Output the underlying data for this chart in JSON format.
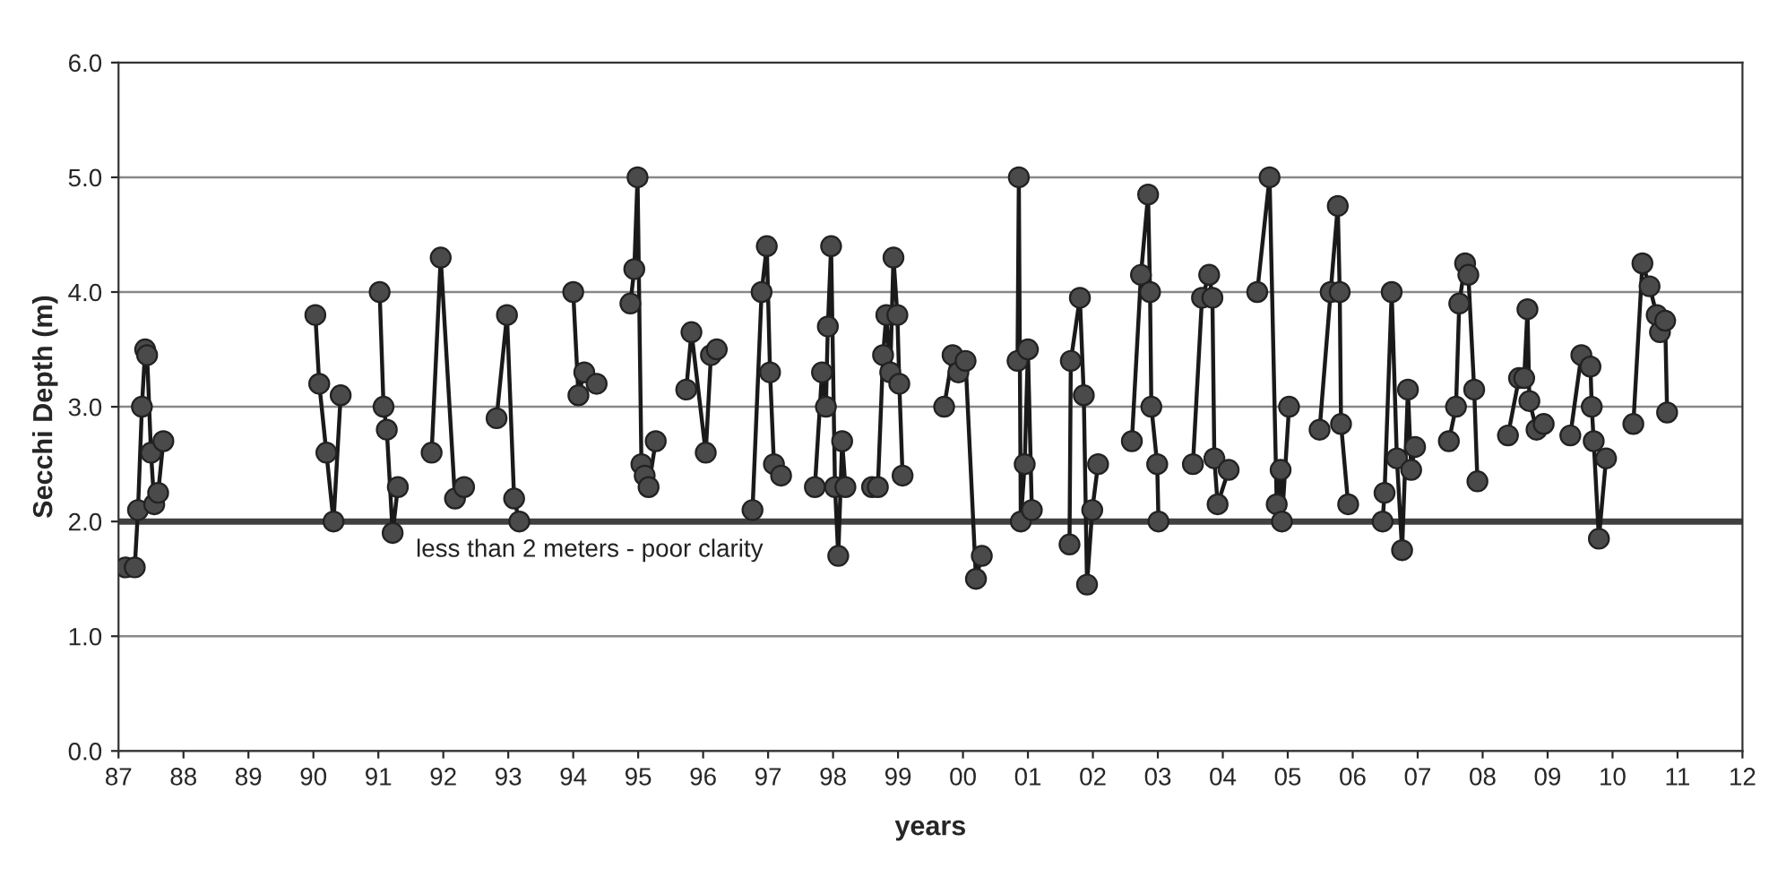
{
  "chart_data": {
    "type": "line",
    "xlabel": "years",
    "ylabel": "Secchi Depth (m)",
    "xlim": [
      1987,
      2012
    ],
    "ylim": [
      0,
      6
    ],
    "xticks": [
      {
        "value": 1987,
        "label": "87"
      },
      {
        "value": 1988,
        "label": "88"
      },
      {
        "value": 1989,
        "label": "89"
      },
      {
        "value": 1990,
        "label": "90"
      },
      {
        "value": 1991,
        "label": "91"
      },
      {
        "value": 1992,
        "label": "92"
      },
      {
        "value": 1993,
        "label": "93"
      },
      {
        "value": 1994,
        "label": "94"
      },
      {
        "value": 1995,
        "label": "95"
      },
      {
        "value": 1996,
        "label": "96"
      },
      {
        "value": 1997,
        "label": "97"
      },
      {
        "value": 1998,
        "label": "98"
      },
      {
        "value": 1999,
        "label": "99"
      },
      {
        "value": 2000,
        "label": "00"
      },
      {
        "value": 2001,
        "label": "01"
      },
      {
        "value": 2002,
        "label": "02"
      },
      {
        "value": 2003,
        "label": "03"
      },
      {
        "value": 2004,
        "label": "04"
      },
      {
        "value": 2005,
        "label": "05"
      },
      {
        "value": 2006,
        "label": "06"
      },
      {
        "value": 2007,
        "label": "07"
      },
      {
        "value": 2008,
        "label": "08"
      },
      {
        "value": 2009,
        "label": "09"
      },
      {
        "value": 2010,
        "label": "10"
      },
      {
        "value": 2011,
        "label": "11"
      },
      {
        "value": 2012,
        "label": "12"
      }
    ],
    "yticks": [
      {
        "value": 0,
        "label": "0.0"
      },
      {
        "value": 1,
        "label": "1.0"
      },
      {
        "value": 2,
        "label": "2.0"
      },
      {
        "value": 3,
        "label": "3.0"
      },
      {
        "value": 4,
        "label": "4.0"
      },
      {
        "value": 5,
        "label": "5.0"
      },
      {
        "value": 6,
        "label": "6.0"
      }
    ],
    "grid": "y",
    "marker": "circle",
    "line_style": "solid",
    "legend": false,
    "ref_lines": [
      {
        "axis": "y",
        "value": 2.0,
        "label": "less than 2 meters - poor clarity",
        "color": "#404040"
      }
    ],
    "series": [
      {
        "color": "#4a4a4a",
        "x": [
          1987.11,
          1987.25,
          1987.3,
          1987.36,
          1987.41,
          1987.44,
          1987.5,
          1987.55,
          1987.61,
          1987.69,
          1989.0,
          1990.03,
          1990.09,
          1990.2,
          1990.31,
          1990.42,
          1990.7,
          1991.02,
          1991.08,
          1991.13,
          1991.22,
          1991.3,
          1991.55,
          1991.82,
          1991.96,
          1992.18,
          1992.32,
          1992.6,
          1992.82,
          1992.98,
          1993.09,
          1993.17,
          1993.6,
          1994.0,
          1994.08,
          1994.17,
          1994.36,
          1994.6,
          1994.88,
          1994.94,
          1994.99,
          1995.05,
          1995.1,
          1995.16,
          1995.27,
          1995.5,
          1995.74,
          1995.82,
          1996.04,
          1996.12,
          1996.21,
          1996.5,
          1996.76,
          1996.9,
          1996.98,
          1997.03,
          1997.09,
          1997.2,
          1997.45,
          1997.72,
          1997.83,
          1997.89,
          1997.92,
          1997.97,
          1998.03,
          1998.08,
          1998.14,
          1998.19,
          1998.4,
          1998.6,
          1998.69,
          1998.77,
          1998.82,
          1998.88,
          1998.93,
          1998.99,
          1999.02,
          1999.07,
          1999.4,
          1999.71,
          1999.84,
          1999.93,
          2000.04,
          2000.2,
          2000.29,
          2000.55,
          2000.84,
          2000.86,
          2000.89,
          2000.95,
          2001.0,
          2001.06,
          2001.35,
          2001.64,
          2001.66,
          2001.8,
          2001.86,
          2001.91,
          2001.99,
          2002.08,
          2002.35,
          2002.6,
          2002.74,
          2002.85,
          2002.88,
          2002.9,
          2002.99,
          2003.01,
          2003.3,
          2003.54,
          2003.68,
          2003.79,
          2003.84,
          2003.87,
          2003.92,
          2004.09,
          2004.3,
          2004.53,
          2004.72,
          2004.83,
          2004.89,
          2004.91,
          2005.02,
          2005.25,
          2005.49,
          2005.66,
          2005.77,
          2005.8,
          2005.82,
          2005.93,
          2006.2,
          2006.46,
          2006.49,
          2006.6,
          2006.68,
          2006.76,
          2006.85,
          2006.9,
          2006.96,
          2007.2,
          2007.48,
          2007.59,
          2007.64,
          2007.73,
          2007.78,
          2007.87,
          2007.92,
          2008.15,
          2008.39,
          2008.56,
          2008.64,
          2008.69,
          2008.72,
          2008.83,
          2008.94,
          2009.15,
          2009.35,
          2009.52,
          2009.66,
          2009.68,
          2009.71,
          2009.79,
          2009.9,
          2010.1,
          2010.32,
          2010.46,
          2010.57,
          2010.68,
          2010.73,
          2010.81,
          2010.84
        ],
        "values": [
          1.6,
          1.6,
          2.1,
          3.0,
          3.5,
          3.45,
          2.6,
          2.15,
          2.25,
          2.7,
          null,
          3.8,
          3.2,
          2.6,
          2.0,
          3.1,
          null,
          4.0,
          3.0,
          2.8,
          1.9,
          2.3,
          null,
          2.6,
          4.3,
          2.2,
          2.3,
          null,
          2.9,
          3.8,
          2.2,
          2.0,
          null,
          4.0,
          3.1,
          3.3,
          3.2,
          null,
          3.9,
          4.2,
          5.0,
          2.5,
          2.4,
          2.3,
          2.7,
          null,
          3.15,
          3.65,
          2.6,
          3.45,
          3.5,
          null,
          2.1,
          4.0,
          4.4,
          3.3,
          2.5,
          2.4,
          null,
          2.3,
          3.3,
          3.0,
          3.7,
          4.4,
          2.3,
          1.7,
          2.7,
          2.3,
          null,
          2.3,
          2.3,
          3.45,
          3.8,
          3.3,
          4.3,
          3.8,
          3.2,
          2.4,
          null,
          3.0,
          3.45,
          3.3,
          3.4,
          1.5,
          1.7,
          null,
          3.4,
          5.0,
          2.0,
          2.5,
          3.5,
          2.1,
          null,
          1.8,
          3.4,
          3.95,
          3.1,
          1.45,
          2.1,
          2.5,
          null,
          2.7,
          4.15,
          4.85,
          4.0,
          3.0,
          2.5,
          2.0,
          null,
          2.5,
          3.95,
          4.15,
          3.95,
          2.55,
          2.15,
          2.45,
          null,
          4.0,
          5.0,
          2.15,
          2.45,
          2.0,
          3.0,
          null,
          2.8,
          4.0,
          4.75,
          4.0,
          2.85,
          2.15,
          null,
          2.0,
          2.25,
          4.0,
          2.55,
          1.75,
          3.15,
          2.45,
          2.65,
          null,
          2.7,
          3.0,
          3.9,
          4.25,
          4.15,
          3.15,
          2.35,
          null,
          2.75,
          3.25,
          3.25,
          3.85,
          3.05,
          2.8,
          2.85,
          null,
          2.75,
          3.45,
          3.35,
          3.0,
          2.7,
          1.85,
          2.55,
          null,
          2.85,
          4.25,
          4.05,
          3.8,
          3.65,
          3.75,
          2.95
        ]
      }
    ]
  }
}
